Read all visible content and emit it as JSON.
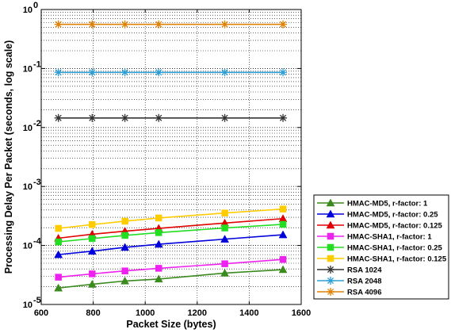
{
  "chart_data": {
    "type": "line",
    "title": "",
    "xlabel": "Packet Size (bytes)",
    "ylabel": "Processing Delay Per Packet (seconds, log scale)",
    "xlim": [
      600,
      1600
    ],
    "ylim": [
      1e-05,
      1
    ],
    "yscale": "log",
    "grid": true,
    "legend_position": "outside-right-bottom",
    "x_ticks": [
      600,
      800,
      1000,
      1200,
      1400,
      1600
    ],
    "y_ticks": [
      {
        "value": 1e-05,
        "base": "10",
        "exp": "-5"
      },
      {
        "value": 0.0001,
        "base": "10",
        "exp": "-4"
      },
      {
        "value": 0.001,
        "base": "10",
        "exp": "-3"
      },
      {
        "value": 0.01,
        "base": "10",
        "exp": "-2"
      },
      {
        "value": 0.1,
        "base": "10",
        "exp": "-1"
      },
      {
        "value": 1,
        "base": "10",
        "exp": "0"
      }
    ],
    "x": [
      666,
      796,
      922,
      1052,
      1306,
      1530
    ],
    "series": [
      {
        "name": "HMAC-MD5, r-factor: 1",
        "color": "#3a8a1e",
        "marker": "triangle",
        "values": [
          1.9e-05,
          2.2e-05,
          2.5e-05,
          2.7e-05,
          3.4e-05,
          3.9e-05
        ]
      },
      {
        "name": "HMAC-MD5, r-factor: 0.25",
        "color": "#0000dd",
        "marker": "triangle",
        "values": [
          7e-05,
          8e-05,
          9.3e-05,
          0.000105,
          0.000128,
          0.000152
        ]
      },
      {
        "name": "HMAC-MD5, r-factor: 0.125",
        "color": "#e00000",
        "marker": "triangle",
        "values": [
          0.000133,
          0.000155,
          0.000175,
          0.000195,
          0.00024,
          0.000285
        ]
      },
      {
        "name": "HMAC-SHA1, r-factor: 1",
        "color": "#ee22ee",
        "marker": "square",
        "values": [
          2.9e-05,
          3.3e-05,
          3.7e-05,
          4.1e-05,
          4.9e-05,
          5.8e-05
        ]
      },
      {
        "name": "HMAC-SHA1, r-factor: 0.25",
        "color": "#22dd22",
        "marker": "square",
        "values": [
          0.000115,
          0.000131,
          0.000148,
          0.000165,
          0.000198,
          0.000228
        ]
      },
      {
        "name": "HMAC-SHA1, r-factor: 0.125",
        "color": "#ffcc00",
        "marker": "square",
        "values": [
          0.000195,
          0.000226,
          0.000258,
          0.000292,
          0.000355,
          0.000415
        ]
      },
      {
        "name": "RSA 1024",
        "color": "#333333",
        "marker": "asterisk",
        "values": [
          0.0145,
          0.0145,
          0.0145,
          0.0145,
          0.0145,
          0.0145
        ]
      },
      {
        "name": "RSA 2048",
        "color": "#2b9fd6",
        "marker": "asterisk",
        "values": [
          0.086,
          0.086,
          0.086,
          0.086,
          0.086,
          0.086
        ]
      },
      {
        "name": "RSA 4096",
        "color": "#e08000",
        "marker": "asterisk",
        "values": [
          0.56,
          0.56,
          0.56,
          0.56,
          0.56,
          0.56
        ]
      }
    ]
  }
}
